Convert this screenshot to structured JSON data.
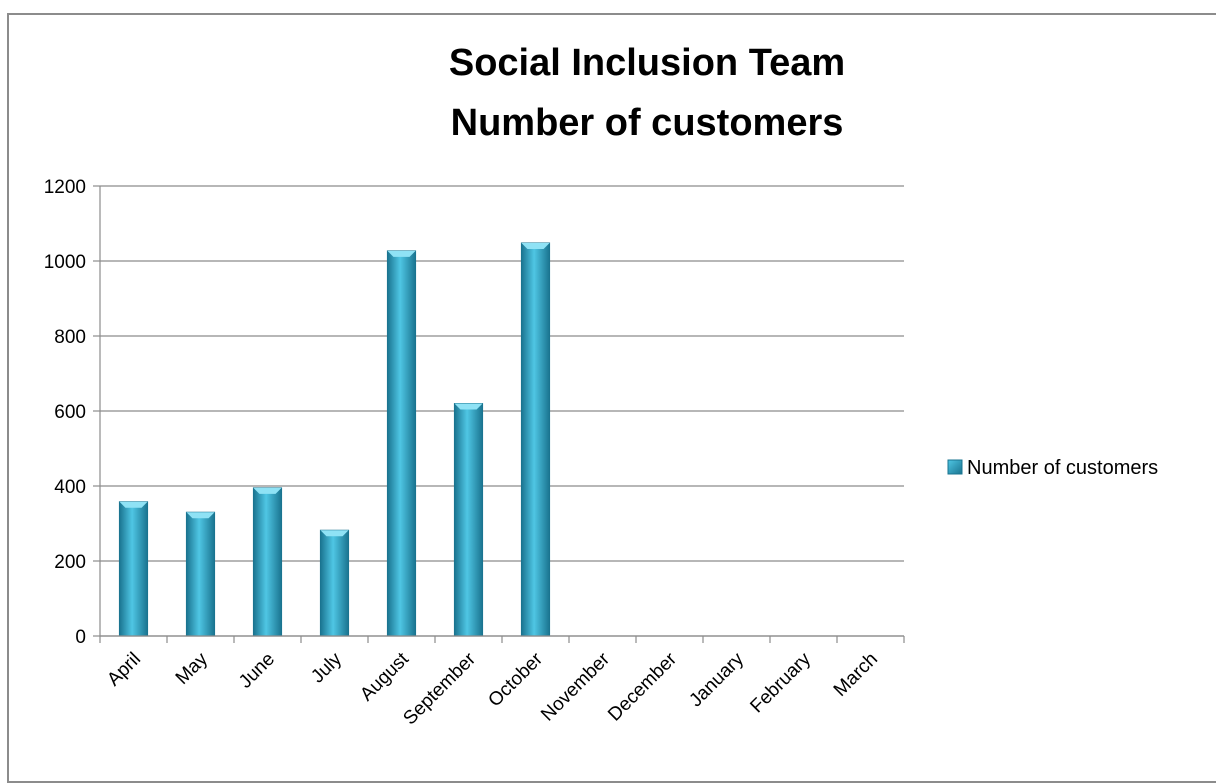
{
  "chart_data": {
    "type": "bar",
    "title_lines": [
      "Social Inclusion Team",
      "Number of customers"
    ],
    "xlabel": "",
    "ylabel": "",
    "categories": [
      "April",
      "May",
      "June",
      "July",
      "August",
      "September",
      "October",
      "November",
      "December",
      "January",
      "February",
      "March"
    ],
    "series": [
      {
        "name": "Number of customers",
        "values": [
          358,
          330,
          395,
          282,
          1027,
          620,
          1048,
          null,
          null,
          null,
          null,
          null
        ]
      }
    ],
    "ylim": [
      0,
      1200
    ],
    "yticks": [
      0,
      200,
      400,
      600,
      800,
      1000,
      1200
    ],
    "grid": true,
    "legend_position": "right",
    "colors": {
      "bar_light": "#4fc6e4",
      "bar_mid": "#2aa5c6",
      "bar_dark": "#1a7490",
      "bar_top": "#8fe2f5",
      "grid": "#8c8c8c",
      "axis": "#8c8c8c"
    }
  }
}
